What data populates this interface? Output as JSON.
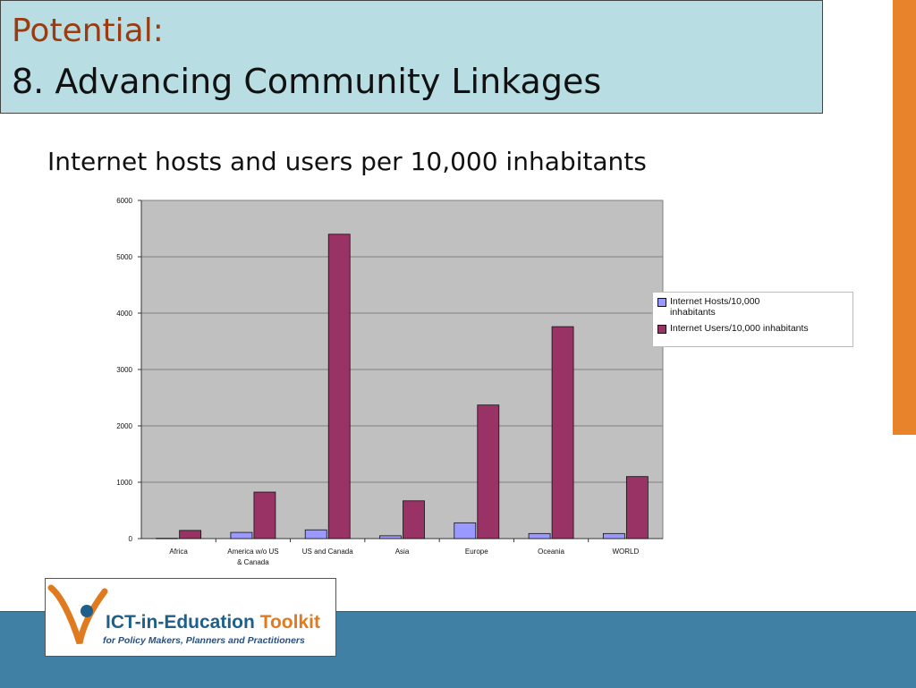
{
  "slide": {
    "title_line1": "Potential:",
    "title_line2": "8. Advancing Community Linkages"
  },
  "colors": {
    "hosts": "#9999ff",
    "users": "#993366",
    "plot_bg": "#c0c0c0",
    "title_bg": "#b8dde2",
    "accent_orange": "#e8822b",
    "band_blue": "#3f80a4"
  },
  "chart_data": {
    "type": "bar",
    "title": "Internet hosts and users per 10,000 inhabitants",
    "categories": [
      "Africa",
      "America w/o US & Canada",
      "US and Canada",
      "Asia",
      "Europe",
      "Oceania",
      "WORLD"
    ],
    "category_lines": [
      [
        "Africa"
      ],
      [
        "America w/o US",
        "& Canada"
      ],
      [
        "US and Canada"
      ],
      [
        "Asia"
      ],
      [
        "Europe"
      ],
      [
        "Oceania"
      ],
      [
        "WORLD"
      ]
    ],
    "series": [
      {
        "name": "Internet Hosts/10,000 inhabitants",
        "values": [
          5,
          110,
          155,
          50,
          280,
          90,
          90
        ]
      },
      {
        "name": "Internet Users/10,000 inhabitants",
        "values": [
          145,
          825,
          5400,
          670,
          2370,
          3760,
          1100
        ]
      }
    ],
    "ylim": [
      0,
      6000
    ],
    "yticks": [
      0,
      1000,
      2000,
      3000,
      4000,
      5000,
      6000
    ],
    "grid": true,
    "legend": "right"
  },
  "logo": {
    "brand": "ICT-in-Education",
    "toolkit": "Toolkit",
    "tagline": "for Policy Makers, Planners and Practitioners"
  }
}
